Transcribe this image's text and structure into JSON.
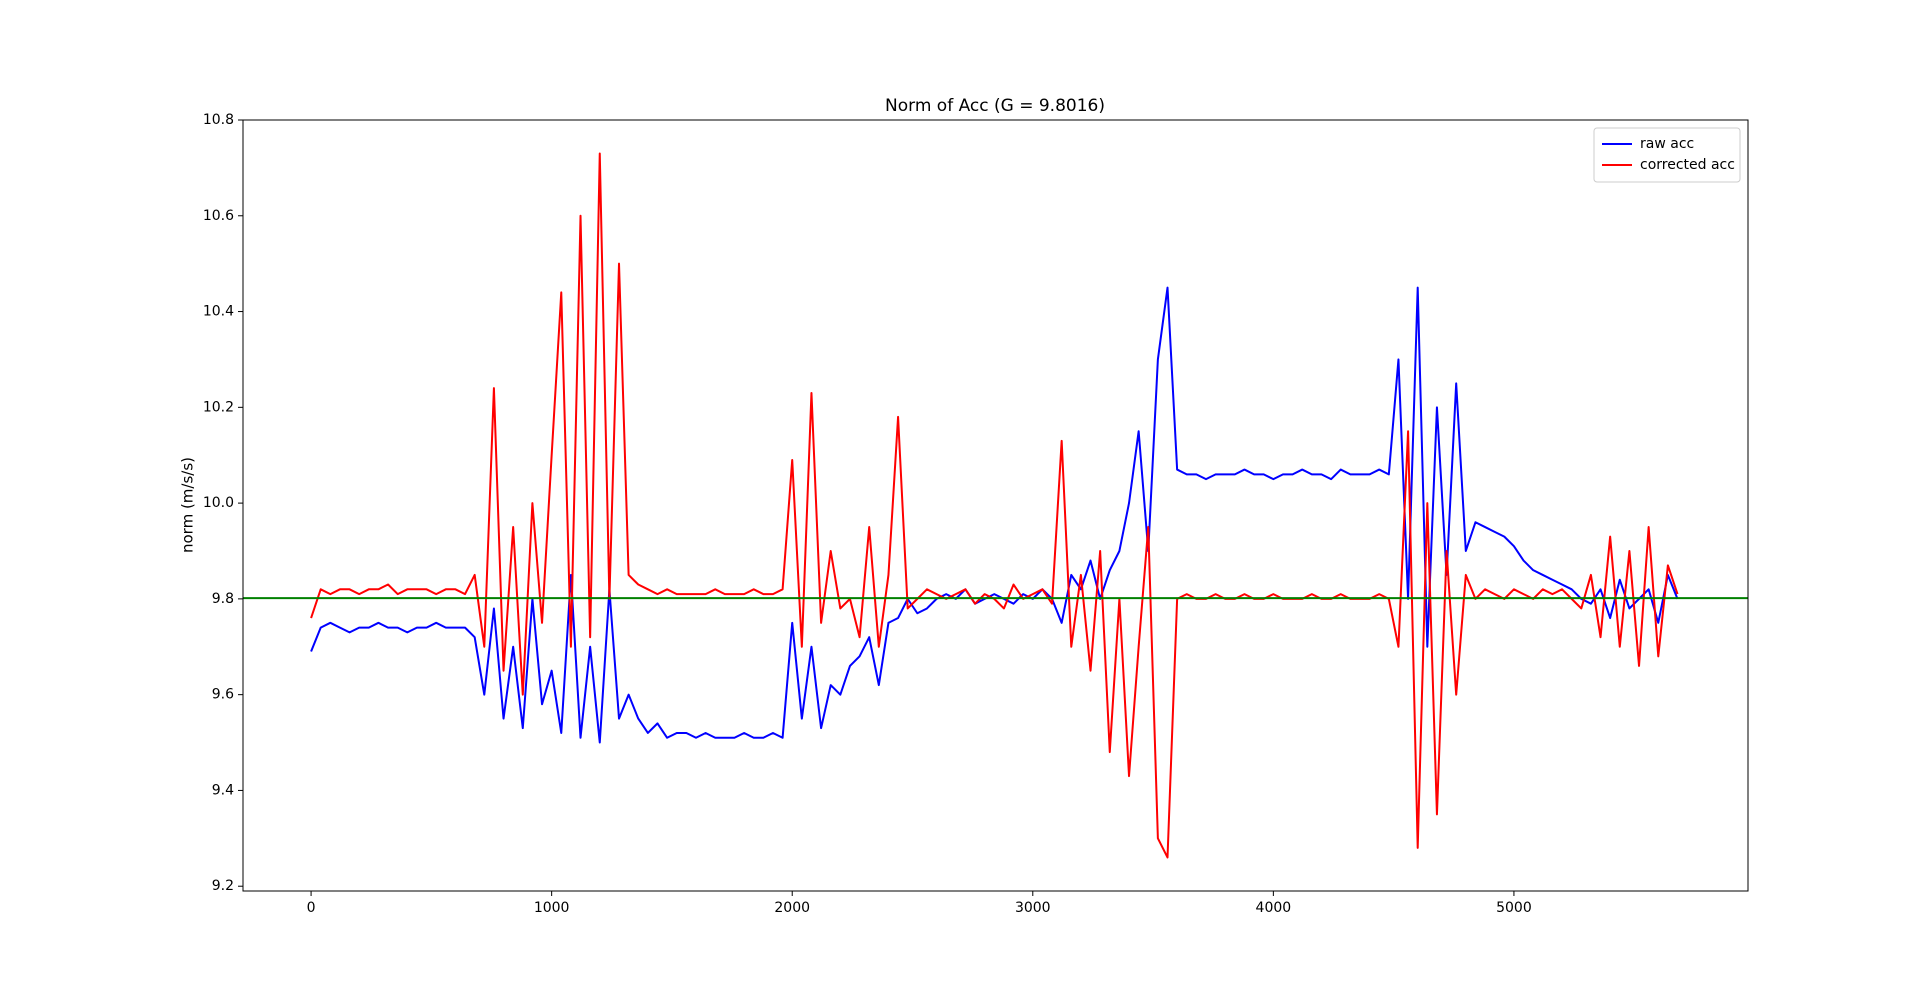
{
  "chart_data": {
    "type": "line",
    "title": "Norm of Acc (G = 9.8016)",
    "y_label": "norm (m/s/s)",
    "x": [
      0,
      40,
      80,
      120,
      160,
      200,
      240,
      280,
      320,
      360,
      400,
      440,
      480,
      520,
      560,
      600,
      640,
      680,
      720,
      760,
      800,
      840,
      880,
      920,
      960,
      1000,
      1040,
      1080,
      1120,
      1160,
      1200,
      1240,
      1280,
      1320,
      1360,
      1400,
      1440,
      1480,
      1520,
      1560,
      1600,
      1640,
      1680,
      1720,
      1760,
      1800,
      1840,
      1880,
      1920,
      1960,
      2000,
      2040,
      2080,
      2120,
      2160,
      2200,
      2240,
      2280,
      2320,
      2360,
      2400,
      2440,
      2480,
      2520,
      2560,
      2600,
      2640,
      2680,
      2720,
      2760,
      2800,
      2840,
      2880,
      2920,
      2960,
      3000,
      3040,
      3080,
      3120,
      3160,
      3200,
      3240,
      3280,
      3320,
      3360,
      3400,
      3440,
      3480,
      3520,
      3560,
      3600,
      3640,
      3680,
      3720,
      3760,
      3800,
      3840,
      3880,
      3920,
      3960,
      4000,
      4040,
      4080,
      4120,
      4160,
      4200,
      4240,
      4280,
      4320,
      4360,
      4400,
      4440,
      4480,
      4520,
      4560,
      4600,
      4640,
      4680,
      4720,
      4760,
      4800,
      4840,
      4880,
      4920,
      4960,
      5000,
      5040,
      5080,
      5120,
      5160,
      5200,
      5240,
      5280,
      5320,
      5360,
      5400,
      5440,
      5480,
      5520,
      5560,
      5600,
      5640,
      5680
    ],
    "series": [
      {
        "name": "raw acc",
        "color": "#0000ff",
        "values": [
          9.69,
          9.74,
          9.75,
          9.74,
          9.73,
          9.74,
          9.74,
          9.75,
          9.74,
          9.74,
          9.73,
          9.74,
          9.74,
          9.75,
          9.74,
          9.74,
          9.74,
          9.72,
          9.6,
          9.78,
          9.55,
          9.7,
          9.53,
          9.8,
          9.58,
          9.65,
          9.52,
          9.85,
          9.51,
          9.7,
          9.5,
          9.82,
          9.55,
          9.6,
          9.55,
          9.52,
          9.54,
          9.51,
          9.52,
          9.52,
          9.51,
          9.52,
          9.51,
          9.51,
          9.51,
          9.52,
          9.51,
          9.51,
          9.52,
          9.51,
          9.75,
          9.55,
          9.7,
          9.53,
          9.62,
          9.6,
          9.66,
          9.68,
          9.72,
          9.62,
          9.75,
          9.76,
          9.8,
          9.77,
          9.78,
          9.8,
          9.81,
          9.8,
          9.82,
          9.79,
          9.8,
          9.81,
          9.8,
          9.79,
          9.81,
          9.8,
          9.82,
          9.8,
          9.75,
          9.85,
          9.82,
          9.88,
          9.8,
          9.86,
          9.9,
          10.0,
          10.15,
          9.9,
          10.3,
          10.45,
          10.07,
          10.06,
          10.06,
          10.05,
          10.06,
          10.06,
          10.06,
          10.07,
          10.06,
          10.06,
          10.05,
          10.06,
          10.06,
          10.07,
          10.06,
          10.06,
          10.05,
          10.07,
          10.06,
          10.06,
          10.06,
          10.07,
          10.06,
          10.3,
          9.8,
          10.45,
          9.7,
          10.2,
          9.85,
          10.25,
          9.9,
          9.96,
          9.95,
          9.94,
          9.93,
          9.91,
          9.88,
          9.86,
          9.85,
          9.84,
          9.83,
          9.82,
          9.8,
          9.79,
          9.82,
          9.76,
          9.84,
          9.78,
          9.8,
          9.82,
          9.75,
          9.85,
          9.8
        ]
      },
      {
        "name": "corrected acc",
        "color": "#ff0000",
        "values": [
          9.76,
          9.82,
          9.81,
          9.82,
          9.82,
          9.81,
          9.82,
          9.82,
          9.83,
          9.81,
          9.82,
          9.82,
          9.82,
          9.81,
          9.82,
          9.82,
          9.81,
          9.85,
          9.7,
          10.24,
          9.65,
          9.95,
          9.6,
          10.0,
          9.75,
          10.1,
          10.44,
          9.7,
          10.6,
          9.72,
          10.73,
          9.8,
          10.5,
          9.85,
          9.83,
          9.82,
          9.81,
          9.82,
          9.81,
          9.81,
          9.81,
          9.81,
          9.82,
          9.81,
          9.81,
          9.81,
          9.82,
          9.81,
          9.81,
          9.82,
          10.09,
          9.7,
          10.23,
          9.75,
          9.9,
          9.78,
          9.8,
          9.72,
          9.95,
          9.7,
          9.85,
          10.18,
          9.78,
          9.8,
          9.82,
          9.81,
          9.8,
          9.81,
          9.82,
          9.79,
          9.81,
          9.8,
          9.78,
          9.83,
          9.8,
          9.81,
          9.82,
          9.79,
          10.13,
          9.7,
          9.85,
          9.65,
          9.9,
          9.48,
          9.8,
          9.43,
          9.7,
          9.95,
          9.3,
          9.26,
          9.8,
          9.81,
          9.8,
          9.8,
          9.81,
          9.8,
          9.8,
          9.81,
          9.8,
          9.8,
          9.81,
          9.8,
          9.8,
          9.8,
          9.81,
          9.8,
          9.8,
          9.81,
          9.8,
          9.8,
          9.8,
          9.81,
          9.8,
          9.7,
          10.15,
          9.28,
          10.0,
          9.35,
          9.9,
          9.6,
          9.85,
          9.8,
          9.82,
          9.81,
          9.8,
          9.82,
          9.81,
          9.8,
          9.82,
          9.81,
          9.82,
          9.8,
          9.78,
          9.85,
          9.72,
          9.93,
          9.7,
          9.9,
          9.66,
          9.95,
          9.68,
          9.87,
          9.81
        ]
      }
    ],
    "hline": {
      "value": 9.8016,
      "color": "#008000"
    },
    "xlim": [
      -283,
      5973
    ],
    "xticks": [
      0,
      1000,
      2000,
      3000,
      4000,
      5000
    ],
    "ylim": [
      9.19,
      10.8
    ],
    "yticks": [
      9.2,
      9.4,
      9.6,
      9.8,
      {
        "value": 10,
        "label": "10.0"
      },
      10.2,
      10.4,
      10.6,
      10.8
    ],
    "legend": "upper right"
  }
}
